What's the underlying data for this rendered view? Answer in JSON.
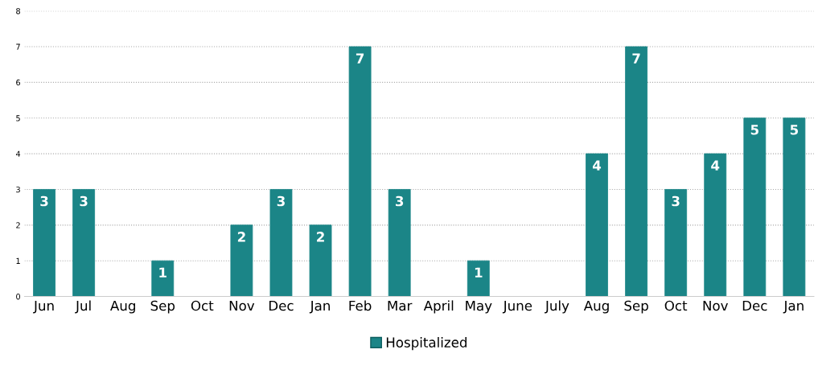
{
  "chart_data": {
    "type": "bar",
    "categories": [
      "Jun",
      "Jul",
      "Aug",
      "Sep",
      "Oct",
      "Nov",
      "Dec",
      "Jan",
      "Feb",
      "Mar",
      "April",
      "May",
      "June",
      "July",
      "Aug",
      "Sep",
      "Oct",
      "Nov",
      "Dec",
      "Jan"
    ],
    "series": [
      {
        "name": "Hospitalized",
        "color": "#1b8587",
        "values": [
          3,
          3,
          0,
          1,
          0,
          2,
          3,
          2,
          7,
          3,
          0,
          1,
          0,
          0,
          4,
          7,
          3,
          4,
          5,
          5
        ]
      }
    ],
    "value_labels": [
      "3",
      "3",
      null,
      "1",
      null,
      "2",
      "3",
      "2",
      "7",
      "3",
      null,
      "1",
      null,
      null,
      "4",
      "7",
      "3",
      "4",
      "5",
      "5"
    ],
    "ylim": [
      0,
      8
    ],
    "yticks": [
      0,
      1,
      2,
      3,
      4,
      5,
      6,
      7,
      8
    ],
    "grid": "y",
    "legend": "bottom"
  }
}
